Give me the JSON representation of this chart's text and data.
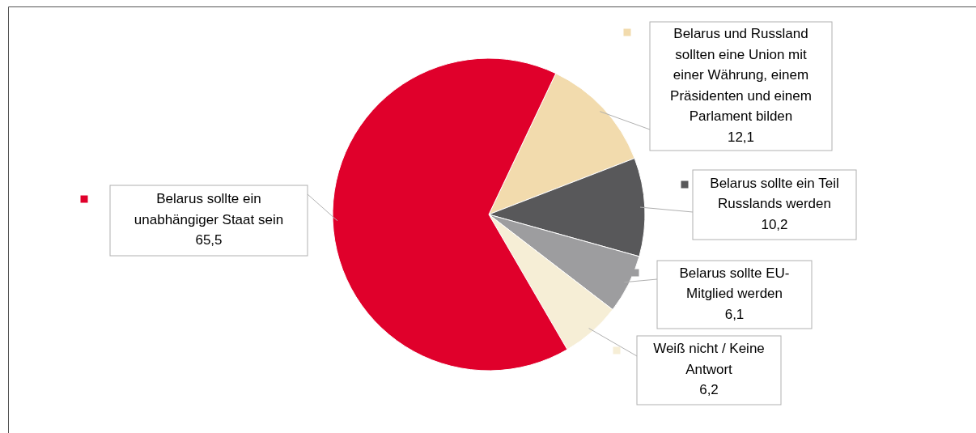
{
  "chart_data": {
    "type": "pie",
    "categories": [
      "Belarus und Russland sollten eine Union mit einer Währung, einem Präsidenten und einem Parlament bilden",
      "Belarus sollte ein Teil Russlands werden",
      "Belarus sollte EU-Mitglied werden",
      "Weiß nicht / Keine Antwort",
      "Belarus sollte ein unabhängiger Staat sein"
    ],
    "values": [
      12.1,
      10.2,
      6.1,
      6.2,
      65.5
    ],
    "legend": "right",
    "value_labels": [
      "12,1",
      "10,2",
      "6,1",
      "6,2",
      "65,5"
    ],
    "colors": [
      "#f2dbad",
      "#58585a",
      "#9d9d9f",
      "#f6eed6",
      "#e0002b"
    ]
  }
}
